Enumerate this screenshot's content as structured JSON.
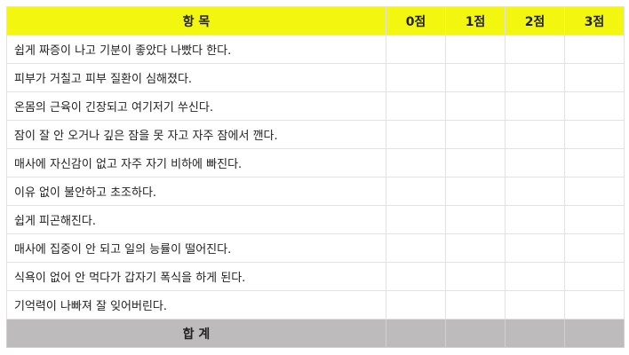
{
  "header": {
    "item": "항 목",
    "scores": [
      "0점",
      "1점",
      "2점",
      "3점"
    ]
  },
  "rows": [
    "쉽게 짜증이 나고 기분이 좋았다 나빴다 한다.",
    "피부가 거칠고 피부 질환이 심해졌다.",
    "온몸의 근육이 긴장되고 여기저기 쑤신다.",
    "잠이 잘 안 오거나 깊은 잠을 못 자고 자주 잠에서 깬다.",
    "매사에 자신감이 없고 자주 자기 비하에 빠진다.",
    "이유 없이 불안하고 초조하다.",
    "쉽게 피곤해진다.",
    "매사에 집중이 안 되고 일의 능률이 떨어진다.",
    "식욕이 없어 안 먹다가 갑자기 폭식을 하게 된다.",
    "기억력이 나빠져 잘 잊어버린다."
  ],
  "footer": {
    "total": "합 계"
  },
  "colors": {
    "header_bg": "#f3f70f",
    "footer_bg": "#bdbbbc"
  }
}
